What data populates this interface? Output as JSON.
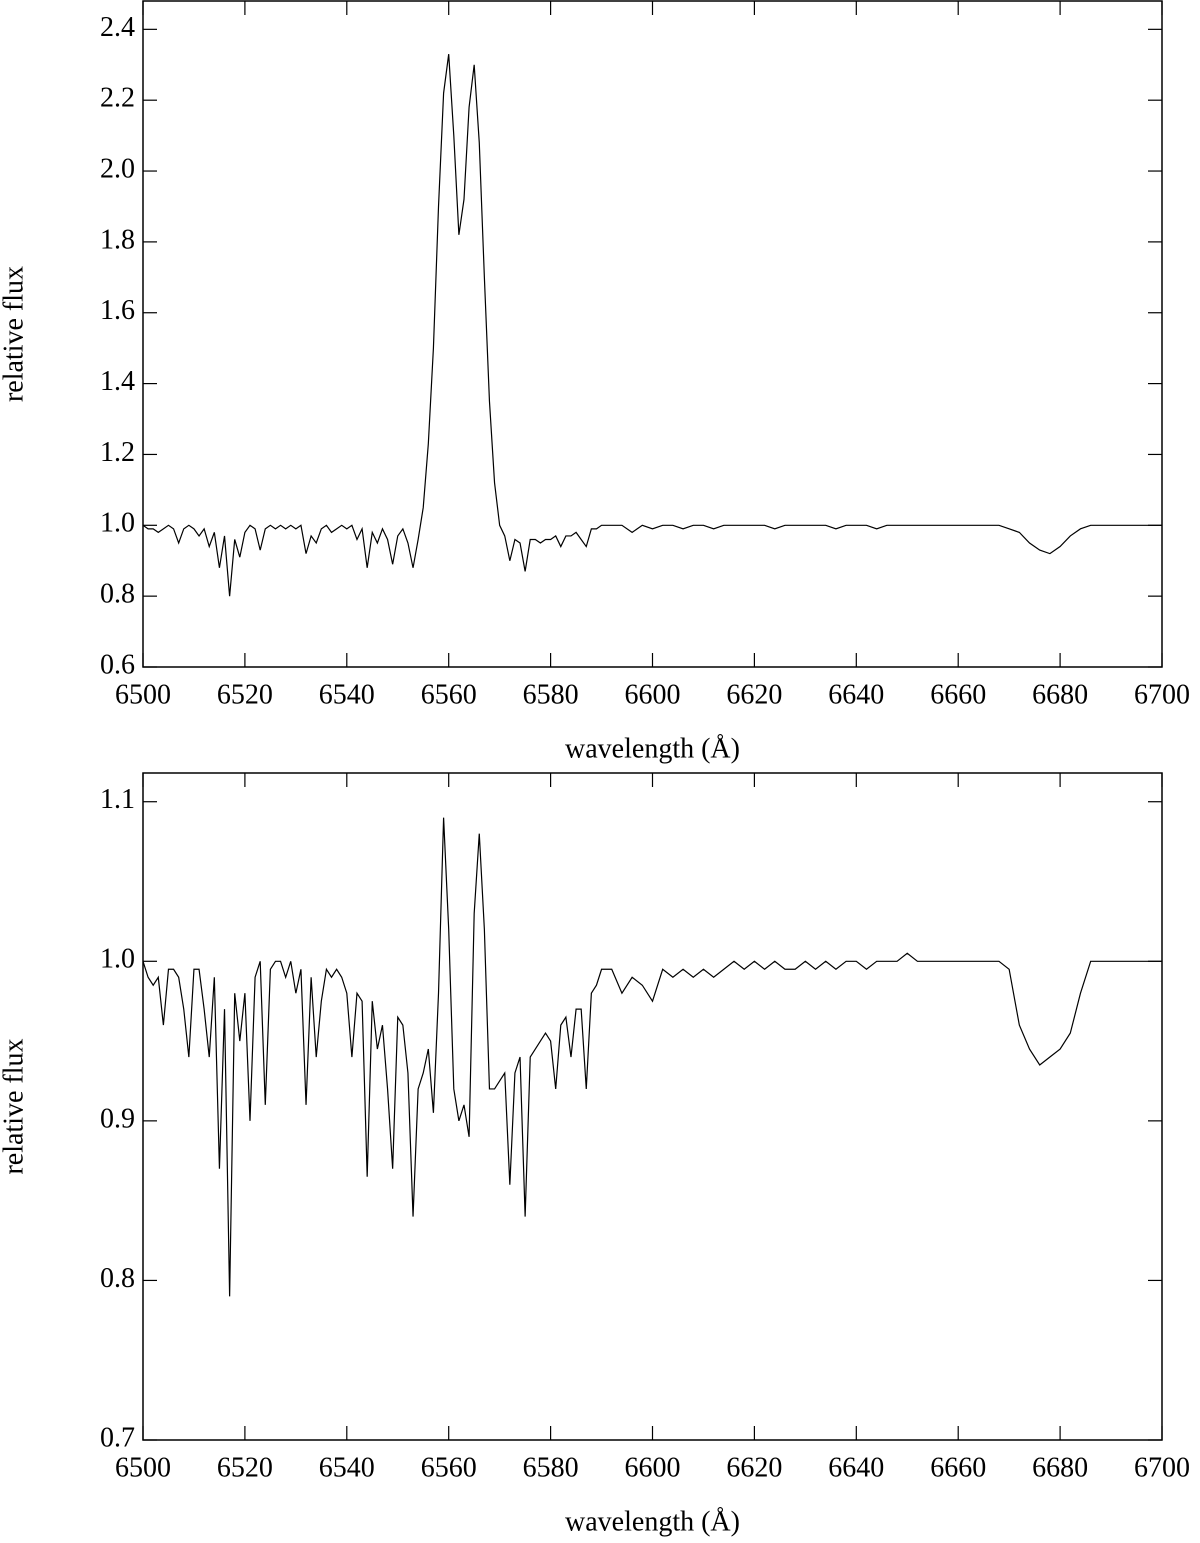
{
  "chart_data": [
    {
      "type": "line",
      "xlabel": "wavelength (Å)",
      "ylabel": "relative flux",
      "x": [
        6500,
        6501,
        6502,
        6503,
        6504,
        6505,
        6506,
        6507,
        6508,
        6509,
        6510,
        6511,
        6512,
        6513,
        6514,
        6515,
        6516,
        6517,
        6518,
        6519,
        6520,
        6521,
        6522,
        6523,
        6524,
        6525,
        6526,
        6527,
        6528,
        6529,
        6530,
        6531,
        6532,
        6533,
        6534,
        6535,
        6536,
        6537,
        6538,
        6539,
        6540,
        6541,
        6542,
        6543,
        6544,
        6545,
        6546,
        6547,
        6548,
        6549,
        6550,
        6551,
        6552,
        6553,
        6554,
        6555,
        6556,
        6557,
        6558,
        6559,
        6560,
        6561,
        6562,
        6563,
        6564,
        6565,
        6566,
        6567,
        6568,
        6569,
        6570,
        6571,
        6572,
        6573,
        6574,
        6575,
        6576,
        6577,
        6578,
        6579,
        6580,
        6581,
        6582,
        6583,
        6584,
        6585,
        6586,
        6587,
        6588,
        6589,
        6590,
        6592,
        6594,
        6596,
        6598,
        6600,
        6602,
        6604,
        6606,
        6608,
        6610,
        6612,
        6614,
        6616,
        6618,
        6620,
        6622,
        6624,
        6626,
        6628,
        6630,
        6632,
        6634,
        6636,
        6638,
        6640,
        6642,
        6644,
        6646,
        6648,
        6650,
        6652,
        6654,
        6656,
        6658,
        6660,
        6662,
        6664,
        6666,
        6668,
        6670,
        6672,
        6674,
        6676,
        6678,
        6680,
        6682,
        6684,
        6686,
        6688,
        6690,
        6692,
        6694,
        6696,
        6698,
        6700
      ],
      "series": [
        {
          "color": "#000000",
          "values": [
            1.0,
            0.99,
            0.99,
            0.98,
            0.99,
            1.0,
            0.99,
            0.95,
            0.99,
            1.0,
            0.99,
            0.97,
            0.99,
            0.94,
            0.98,
            0.88,
            0.97,
            0.8,
            0.96,
            0.91,
            0.98,
            1.0,
            0.99,
            0.93,
            0.99,
            1.0,
            0.99,
            1.0,
            0.99,
            1.0,
            0.99,
            1.0,
            0.92,
            0.97,
            0.95,
            0.99,
            1.0,
            0.98,
            0.99,
            1.0,
            0.99,
            1.0,
            0.96,
            0.99,
            0.88,
            0.98,
            0.95,
            0.99,
            0.96,
            0.89,
            0.97,
            0.99,
            0.95,
            0.88,
            0.96,
            1.05,
            1.23,
            1.5,
            1.9,
            2.22,
            2.33,
            2.1,
            1.82,
            1.92,
            2.18,
            2.3,
            2.08,
            1.7,
            1.35,
            1.12,
            1.0,
            0.97,
            0.9,
            0.96,
            0.95,
            0.87,
            0.96,
            0.96,
            0.95,
            0.96,
            0.96,
            0.97,
            0.94,
            0.97,
            0.97,
            0.98,
            0.96,
            0.94,
            0.99,
            0.99,
            1.0,
            1.0,
            1.0,
            0.98,
            1.0,
            0.99,
            1.0,
            1.0,
            0.99,
            1.0,
            1.0,
            0.99,
            1.0,
            1.0,
            1.0,
            1.0,
            1.0,
            0.99,
            1.0,
            1.0,
            1.0,
            1.0,
            1.0,
            0.99,
            1.0,
            1.0,
            1.0,
            0.99,
            1.0,
            1.0,
            1.0,
            1.0,
            1.0,
            1.0,
            1.0,
            1.0,
            1.0,
            1.0,
            1.0,
            1.0,
            0.99,
            0.98,
            0.95,
            0.93,
            0.92,
            0.94,
            0.97,
            0.99,
            1.0,
            1.0,
            1.0,
            1.0,
            1.0,
            1.0,
            1.0,
            1.0
          ]
        }
      ],
      "xlim": [
        6500,
        6700
      ],
      "xticks": [
        6500,
        6520,
        6540,
        6560,
        6580,
        6600,
        6620,
        6640,
        6660,
        6680,
        6700
      ],
      "ylim": [
        0.6,
        2.48
      ],
      "yticks": [
        0.6,
        0.8,
        {
          "value": 1.0,
          "label": "1.0"
        },
        1.2,
        1.4,
        1.6,
        1.8,
        {
          "value": 2.0,
          "label": "2.0"
        },
        2.2,
        2.4
      ]
    },
    {
      "type": "line",
      "xlabel": "wavelength (Å)",
      "ylabel": "relative flux",
      "x": [
        6500,
        6501,
        6502,
        6503,
        6504,
        6505,
        6506,
        6507,
        6508,
        6509,
        6510,
        6511,
        6512,
        6513,
        6514,
        6515,
        6516,
        6517,
        6518,
        6519,
        6520,
        6521,
        6522,
        6523,
        6524,
        6525,
        6526,
        6527,
        6528,
        6529,
        6530,
        6531,
        6532,
        6533,
        6534,
        6535,
        6536,
        6537,
        6538,
        6539,
        6540,
        6541,
        6542,
        6543,
        6544,
        6545,
        6546,
        6547,
        6548,
        6549,
        6550,
        6551,
        6552,
        6553,
        6554,
        6555,
        6556,
        6557,
        6558,
        6559,
        6560,
        6561,
        6562,
        6563,
        6564,
        6565,
        6566,
        6567,
        6568,
        6569,
        6570,
        6571,
        6572,
        6573,
        6574,
        6575,
        6576,
        6577,
        6578,
        6579,
        6580,
        6581,
        6582,
        6583,
        6584,
        6585,
        6586,
        6587,
        6588,
        6589,
        6590,
        6592,
        6594,
        6596,
        6598,
        6600,
        6602,
        6604,
        6606,
        6608,
        6610,
        6612,
        6614,
        6616,
        6618,
        6620,
        6622,
        6624,
        6626,
        6628,
        6630,
        6632,
        6634,
        6636,
        6638,
        6640,
        6642,
        6644,
        6646,
        6648,
        6650,
        6652,
        6654,
        6656,
        6658,
        6660,
        6662,
        6664,
        6666,
        6668,
        6670,
        6672,
        6674,
        6676,
        6678,
        6680,
        6682,
        6684,
        6686,
        6688,
        6690,
        6692,
        6694,
        6696,
        6698,
        6700
      ],
      "series": [
        {
          "color": "#000000",
          "values": [
            1.0,
            0.99,
            0.985,
            0.99,
            0.96,
            0.995,
            0.995,
            0.99,
            0.97,
            0.94,
            0.995,
            0.995,
            0.97,
            0.94,
            0.99,
            0.87,
            0.97,
            0.79,
            0.98,
            0.95,
            0.98,
            0.9,
            0.99,
            1.0,
            0.91,
            0.995,
            1.0,
            1.0,
            0.99,
            1.0,
            0.98,
            0.995,
            0.91,
            0.99,
            0.94,
            0.975,
            0.995,
            0.99,
            0.995,
            0.99,
            0.98,
            0.94,
            0.98,
            0.975,
            0.865,
            0.975,
            0.945,
            0.96,
            0.92,
            0.87,
            0.965,
            0.96,
            0.93,
            0.84,
            0.92,
            0.93,
            0.945,
            0.905,
            0.98,
            1.09,
            1.02,
            0.92,
            0.9,
            0.91,
            0.89,
            1.03,
            1.08,
            1.02,
            0.92,
            0.92,
            0.925,
            0.93,
            0.86,
            0.93,
            0.94,
            0.84,
            0.94,
            0.945,
            0.95,
            0.955,
            0.95,
            0.92,
            0.96,
            0.965,
            0.94,
            0.97,
            0.97,
            0.92,
            0.98,
            0.985,
            0.995,
            0.995,
            0.98,
            0.99,
            0.985,
            0.975,
            0.995,
            0.99,
            0.995,
            0.99,
            0.995,
            0.99,
            0.995,
            1.0,
            0.995,
            1.0,
            0.995,
            1.0,
            0.995,
            0.995,
            1.0,
            0.995,
            1.0,
            0.995,
            1.0,
            1.0,
            0.995,
            1.0,
            1.0,
            1.0,
            1.005,
            1.0,
            1.0,
            1.0,
            1.0,
            1.0,
            1.0,
            1.0,
            1.0,
            1.0,
            0.995,
            0.96,
            0.945,
            0.935,
            0.94,
            0.945,
            0.955,
            0.98,
            1.0,
            1.0,
            1.0,
            1.0,
            1.0,
            1.0,
            1.0,
            1.0
          ]
        }
      ],
      "xlim": [
        6500,
        6700
      ],
      "xticks": [
        6500,
        6520,
        6540,
        6560,
        6580,
        6600,
        6620,
        6640,
        6660,
        6680,
        6700
      ],
      "ylim": [
        0.7,
        1.118
      ],
      "yticks": [
        0.7,
        0.8,
        0.9,
        {
          "value": 1.0,
          "label": "1.0"
        },
        1.1
      ]
    }
  ]
}
